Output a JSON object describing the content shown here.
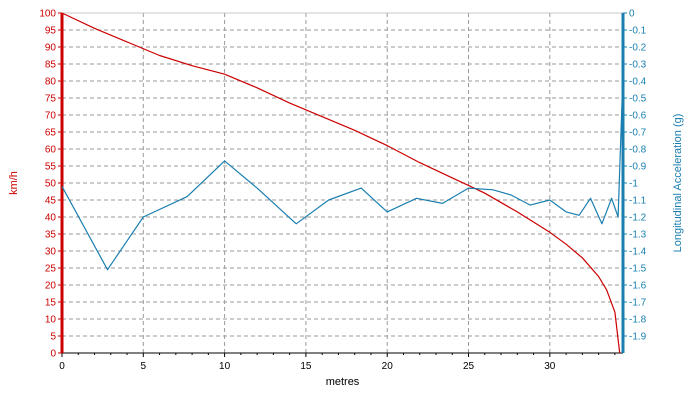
{
  "chart_data": {
    "type": "line",
    "xlabel": "metres",
    "y1label": "km/h",
    "y2label": "Longitudinal Acceleration (g)",
    "xlim": [
      0,
      34.5
    ],
    "y1lim": [
      0,
      100
    ],
    "y2lim": [
      -2.0,
      0
    ],
    "grid": true,
    "x_ticks": [
      "0",
      "5",
      "10",
      "15",
      "20",
      "25",
      "30"
    ],
    "y1_ticks": [
      "0",
      "5",
      "10",
      "15",
      "20",
      "25",
      "30",
      "35",
      "40",
      "45",
      "50",
      "55",
      "60",
      "65",
      "70",
      "75",
      "80",
      "85",
      "90",
      "95",
      "100"
    ],
    "y2_ticks": [
      "0",
      "-0.1",
      "-0.2",
      "-0.3",
      "-0.4",
      "-0.5",
      "-0.6",
      "-0.7",
      "-0.8",
      "-0.9",
      "-1",
      "-1.1",
      "-1.2",
      "-1.3",
      "-1.4",
      "-1.5",
      "-1.6",
      "-1.7",
      "-1.8",
      "-1.9"
    ],
    "colors": {
      "speed": "#cc0000",
      "accel": "#1a7fb0",
      "left_axis": "#cc0000",
      "right_axis": "#1a7fb0",
      "grid": "#9a9a9a"
    },
    "series": [
      {
        "axis": "left",
        "x": [
          0,
          2,
          4,
          6,
          8,
          10,
          12,
          14,
          16,
          18,
          20,
          22,
          24,
          25,
          26,
          28,
          30,
          31,
          32,
          33,
          33.5,
          34,
          34.3
        ],
        "values": [
          100,
          95.5,
          91.5,
          87.5,
          84.5,
          82,
          78,
          73.5,
          69.5,
          65.5,
          61,
          56,
          51.5,
          49.3,
          47,
          41.5,
          35.5,
          32,
          28,
          22.5,
          18.5,
          12,
          0
        ]
      },
      {
        "axis": "right",
        "x": [
          0,
          2.8,
          5,
          7.7,
          10,
          12,
          14.4,
          16.4,
          18.4,
          20,
          21.8,
          23.4,
          25,
          26.5,
          27.6,
          28.8,
          30,
          31,
          31.8,
          32.5,
          33.2,
          33.8,
          34.2,
          34.5
        ],
        "values": [
          -1.02,
          -1.51,
          -1.2,
          -1.08,
          -0.87,
          -1.03,
          -1.24,
          -1.1,
          -1.03,
          -1.17,
          -1.09,
          -1.12,
          -1.03,
          -1.04,
          -1.07,
          -1.13,
          -1.1,
          -1.17,
          -1.19,
          -1.09,
          -1.24,
          -1.09,
          -1.2,
          -0.35
        ]
      }
    ]
  }
}
